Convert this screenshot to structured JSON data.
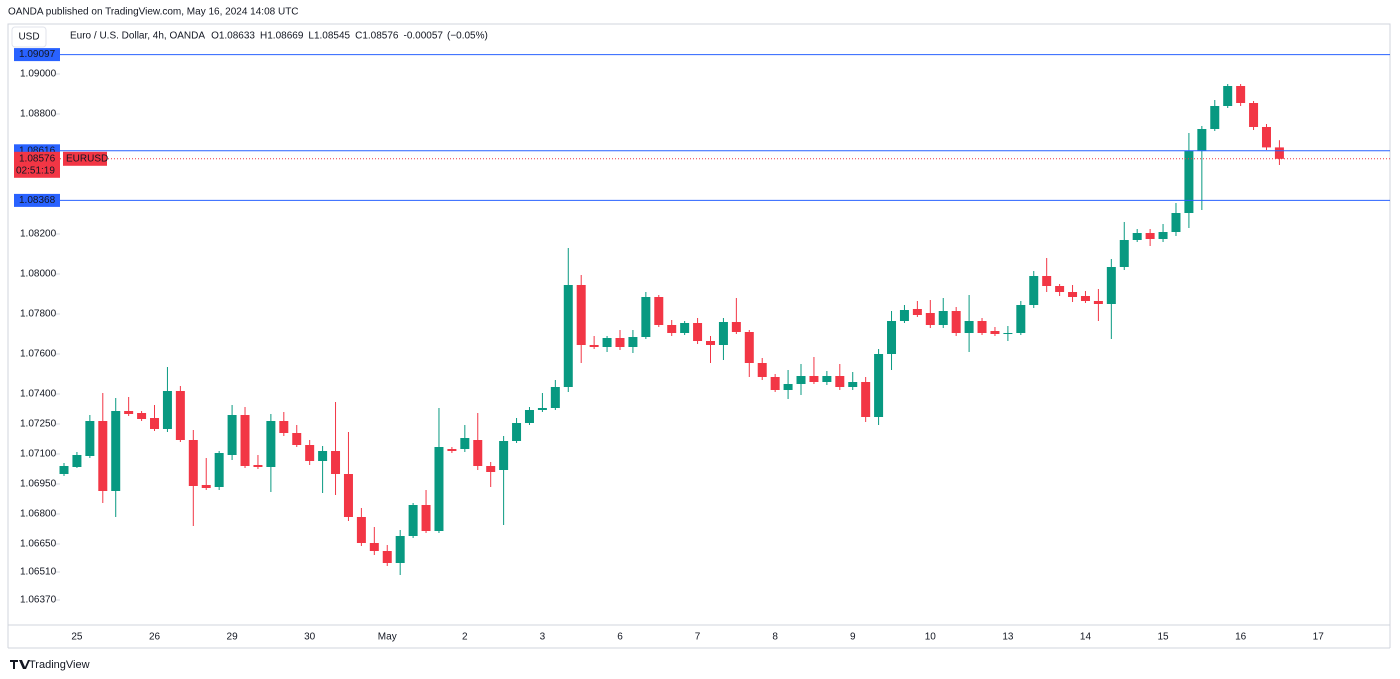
{
  "header": {
    "publisher": "OANDA published on TradingView.com, May 16, 2024 14:08 UTC",
    "currency": "USD",
    "brand": "TradingView"
  },
  "chart_data": {
    "type": "candlestick",
    "title": "Euro / U.S. Dollar, 4h, OANDA",
    "ohlc_prefixes": [
      "O",
      "H",
      "L",
      "C"
    ],
    "change": -0.00057,
    "change_label": "(−0.05%)",
    "up_color": "#089981",
    "down_color": "#f23645",
    "line_color": "#2962ff",
    "ylim": [
      1.06245,
      1.0923
    ],
    "yticks": [
      {
        "value": 1.09,
        "label": "1.09000"
      },
      {
        "value": 1.088,
        "label": "1.08800"
      },
      {
        "value": 1.082,
        "label": "1.08200"
      },
      {
        "value": 1.08,
        "label": "1.08000"
      },
      {
        "value": 1.078,
        "label": "1.07800"
      },
      {
        "value": 1.076,
        "label": "1.07600"
      },
      {
        "value": 1.074,
        "label": "1.07400"
      },
      {
        "value": 1.0725,
        "label": "1.07250"
      },
      {
        "value": 1.071,
        "label": "1.07100"
      },
      {
        "value": 1.0695,
        "label": "1.06950"
      },
      {
        "value": 1.068,
        "label": "1.06800"
      },
      {
        "value": 1.0665,
        "label": "1.06650"
      },
      {
        "value": 1.0651,
        "label": "1.06510"
      },
      {
        "value": 1.0637,
        "label": "1.06370"
      }
    ],
    "hlines": [
      1.09097,
      1.08616,
      1.08368
    ],
    "current_price": {
      "value": 1.08576,
      "symbol": "EURUSD",
      "countdown": "02:51:19"
    },
    "categories": [
      null,
      "25",
      null,
      null,
      null,
      null,
      null,
      "26",
      null,
      null,
      null,
      null,
      null,
      "29",
      null,
      null,
      null,
      null,
      null,
      "30",
      null,
      null,
      null,
      null,
      null,
      "May",
      null,
      null,
      null,
      null,
      null,
      "2",
      null,
      null,
      null,
      null,
      null,
      "3",
      null,
      null,
      null,
      null,
      null,
      "6",
      null,
      null,
      null,
      null,
      null,
      "7",
      null,
      null,
      null,
      null,
      null,
      "8",
      null,
      null,
      null,
      null,
      null,
      "9",
      null,
      null,
      null,
      null,
      null,
      "10",
      null,
      null,
      null,
      null,
      null,
      "13",
      null,
      null,
      null,
      null,
      null,
      "14",
      null,
      null,
      null,
      null,
      null,
      "15",
      null,
      null,
      null,
      null,
      null,
      "16",
      null,
      null,
      null,
      null,
      null,
      "17"
    ],
    "open": [
      1.07,
      1.07035,
      1.0709,
      1.07265,
      1.06915,
      1.07315,
      1.07305,
      1.0728,
      1.07225,
      1.07415,
      1.0717,
      1.06945,
      1.06935,
      1.07095,
      1.07295,
      1.07045,
      1.07035,
      1.07265,
      1.07205,
      1.07145,
      1.07065,
      1.07115,
      1.07,
      1.06785,
      1.06655,
      1.06615,
      1.06555,
      1.0669,
      1.06845,
      1.06715,
      1.07125,
      1.07125,
      1.0717,
      1.0704,
      1.0702,
      1.07165,
      1.07255,
      1.0732,
      1.0733,
      1.07435,
      1.07945,
      1.07645,
      1.07635,
      1.0768,
      1.07635,
      1.07685,
      1.07885,
      1.07745,
      1.07705,
      1.07755,
      1.07665,
      1.07645,
      1.0776,
      1.0771,
      1.07555,
      1.07485,
      1.0742,
      1.0745,
      1.0749,
      1.0746,
      1.0749,
      1.07435,
      1.0746,
      1.07285,
      1.076,
      1.07765,
      1.07825,
      1.07805,
      1.07745,
      1.07815,
      1.07705,
      1.07765,
      1.07715,
      1.077,
      1.07705,
      1.07845,
      1.0799,
      1.0794,
      1.0791,
      1.0789,
      1.07865,
      1.0785,
      1.08035,
      1.0817,
      1.08205,
      1.08175,
      1.0821,
      1.08305,
      1.08615,
      1.08725,
      1.0884,
      1.0894,
      1.08855,
      1.08735,
      1.08633,
      null,
      null,
      null
    ],
    "high": [
      1.07055,
      1.0711,
      1.07295,
      1.07405,
      1.0738,
      1.07385,
      1.07315,
      1.07345,
      1.07535,
      1.0744,
      1.0722,
      1.0708,
      1.07115,
      1.07345,
      1.07335,
      1.07095,
      1.073,
      1.0731,
      1.07245,
      1.0717,
      1.0714,
      1.0736,
      1.0721,
      1.0683,
      1.06735,
      1.06645,
      1.0672,
      1.06855,
      1.0692,
      1.0733,
      1.07135,
      1.07245,
      1.07305,
      1.0706,
      1.0719,
      1.0728,
      1.07335,
      1.07405,
      1.0747,
      1.0813,
      1.07995,
      1.0769,
      1.0769,
      1.0772,
      1.0772,
      1.0791,
      1.07895,
      1.0777,
      1.07765,
      1.0778,
      1.0769,
      1.0778,
      1.0788,
      1.0772,
      1.0758,
      1.075,
      1.0752,
      1.0755,
      1.07585,
      1.07515,
      1.0755,
      1.0751,
      1.07485,
      1.07625,
      1.07815,
      1.07845,
      1.07865,
      1.0787,
      1.0788,
      1.07835,
      1.07895,
      1.0778,
      1.07735,
      1.0774,
      1.07865,
      1.08015,
      1.0808,
      1.0795,
      1.07945,
      1.07915,
      1.07925,
      1.08075,
      1.0826,
      1.08225,
      1.08225,
      1.0825,
      1.08355,
      1.08705,
      1.0874,
      1.0887,
      1.0895,
      1.0895,
      1.08865,
      1.0875,
      1.08669,
      null,
      null,
      null
    ],
    "low": [
      1.0699,
      1.0703,
      1.0708,
      1.06855,
      1.06785,
      1.0729,
      1.07265,
      1.07215,
      1.0721,
      1.0716,
      1.0674,
      1.0692,
      1.0692,
      1.0707,
      1.0703,
      1.07025,
      1.0691,
      1.0719,
      1.07135,
      1.07045,
      1.06905,
      1.06895,
      1.06765,
      1.0664,
      1.06595,
      1.0654,
      1.06495,
      1.0668,
      1.06705,
      1.06705,
      1.07105,
      1.0711,
      1.0702,
      1.06935,
      1.06745,
      1.07155,
      1.07245,
      1.0731,
      1.0732,
      1.0741,
      1.07555,
      1.07625,
      1.0761,
      1.0762,
      1.07605,
      1.07675,
      1.07735,
      1.0769,
      1.07695,
      1.0765,
      1.07555,
      1.0757,
      1.077,
      1.07485,
      1.0747,
      1.0741,
      1.07375,
      1.07395,
      1.0745,
      1.07445,
      1.0742,
      1.0742,
      1.0726,
      1.07245,
      1.0752,
      1.07755,
      1.07785,
      1.0773,
      1.0773,
      1.0769,
      1.0761,
      1.07695,
      1.0769,
      1.07665,
      1.07695,
      1.0783,
      1.0791,
      1.0789,
      1.0786,
      1.07855,
      1.07765,
      1.07675,
      1.0802,
      1.0816,
      1.0814,
      1.0816,
      1.0819,
      1.0823,
      1.0832,
      1.08715,
      1.0883,
      1.0884,
      1.0872,
      1.0862,
      1.08545,
      null,
      null,
      null
    ],
    "close": [
      1.0704,
      1.07095,
      1.07265,
      1.06915,
      1.07315,
      1.073,
      1.07275,
      1.07225,
      1.07415,
      1.0717,
      1.0694,
      1.0693,
      1.07105,
      1.07295,
      1.0704,
      1.07035,
      1.07265,
      1.07205,
      1.07145,
      1.07065,
      1.07115,
      1.07,
      1.06785,
      1.06655,
      1.06615,
      1.06555,
      1.0669,
      1.06845,
      1.06715,
      1.07135,
      1.07115,
      1.0718,
      1.0704,
      1.0701,
      1.07165,
      1.07255,
      1.0732,
      1.0733,
      1.07435,
      1.07945,
      1.07645,
      1.07635,
      1.0768,
      1.07635,
      1.07685,
      1.07885,
      1.07745,
      1.07705,
      1.07755,
      1.07665,
      1.07645,
      1.0776,
      1.0771,
      1.07555,
      1.07485,
      1.0742,
      1.0745,
      1.0749,
      1.0746,
      1.0749,
      1.07435,
      1.0746,
      1.07285,
      1.076,
      1.07765,
      1.0782,
      1.07795,
      1.07745,
      1.07815,
      1.07705,
      1.07765,
      1.07705,
      1.077,
      1.07705,
      1.07845,
      1.0799,
      1.0794,
      1.0791,
      1.07885,
      1.07865,
      1.0785,
      1.08035,
      1.0817,
      1.08205,
      1.08175,
      1.0821,
      1.08305,
      1.08615,
      1.08725,
      1.0884,
      1.0894,
      1.08855,
      1.08735,
      1.08633,
      1.08576,
      null,
      null,
      null
    ]
  }
}
